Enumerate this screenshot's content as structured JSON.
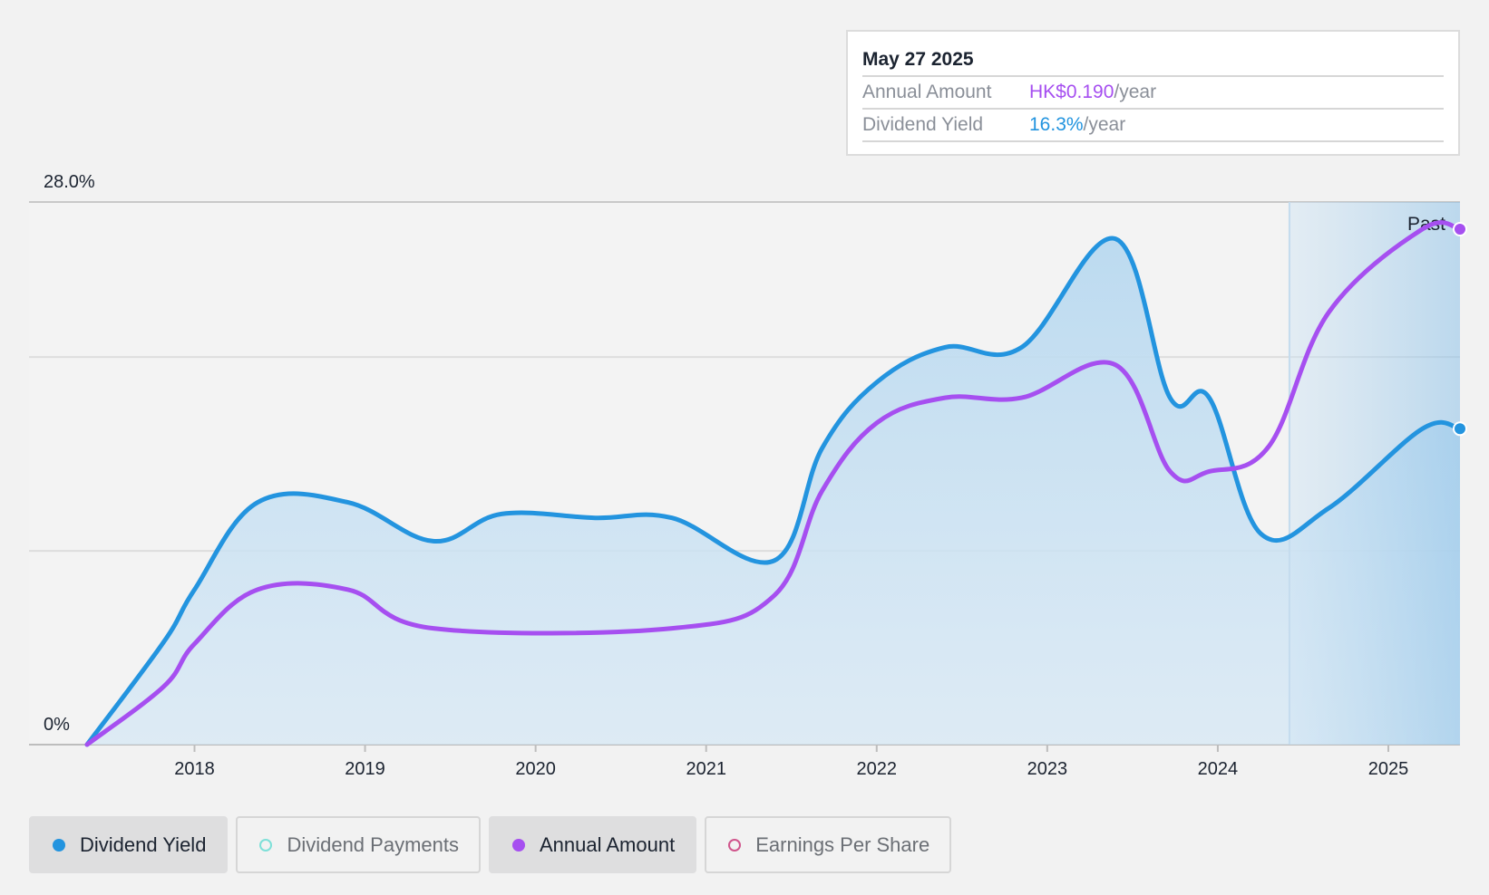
{
  "tooltip": {
    "date": "May 27 2025",
    "rows": [
      {
        "label": "Annual Amount",
        "value": "HK$0.190",
        "unit": "/year"
      },
      {
        "label": "Dividend Yield",
        "value": "16.3%",
        "unit": "/year"
      }
    ]
  },
  "past_label": "Past",
  "legend": [
    {
      "label": "Dividend Yield",
      "color": "#2394df",
      "active": true,
      "filled": true
    },
    {
      "label": "Dividend Payments",
      "color": "#7ee0d8",
      "active": false,
      "filled": false
    },
    {
      "label": "Annual Amount",
      "color": "#a64ff0",
      "active": true,
      "filled": true
    },
    {
      "label": "Earnings Per Share",
      "color": "#d0558c",
      "active": false,
      "filled": false
    }
  ],
  "chart_data": {
    "type": "line",
    "y_tick_labels": [
      "28.0%",
      "0%"
    ],
    "ylim": [
      0,
      28
    ],
    "xlim": [
      2017.37,
      2025.42
    ],
    "x_ticks": [
      "2018",
      "2019",
      "2020",
      "2021",
      "2022",
      "2023",
      "2024",
      "2025"
    ],
    "past_region_start": 2024.42,
    "grid": "horizontal",
    "series": [
      {
        "name": "Dividend Yield",
        "color": "#2394df",
        "area": true,
        "points": [
          [
            2017.37,
            0
          ],
          [
            2017.82,
            5.3
          ],
          [
            2018.0,
            8.0
          ],
          [
            2018.37,
            12.5
          ],
          [
            2018.9,
            12.5
          ],
          [
            2019.4,
            10.5
          ],
          [
            2019.8,
            11.9
          ],
          [
            2020.35,
            11.7
          ],
          [
            2020.8,
            11.7
          ],
          [
            2021.4,
            9.5
          ],
          [
            2021.68,
            15.3
          ],
          [
            2022.0,
            18.7
          ],
          [
            2022.4,
            20.5
          ],
          [
            2022.85,
            20.5
          ],
          [
            2023.4,
            26.1
          ],
          [
            2023.72,
            17.9
          ],
          [
            2023.95,
            17.9
          ],
          [
            2024.25,
            10.9
          ],
          [
            2024.65,
            12.2
          ],
          [
            2025.2,
            16.3
          ],
          [
            2025.42,
            16.3
          ]
        ]
      },
      {
        "name": "Annual Amount",
        "color": "#a64ff0",
        "area": false,
        "points": [
          [
            2017.37,
            0
          ],
          [
            2017.82,
            3.0
          ],
          [
            2018.0,
            5.2
          ],
          [
            2018.37,
            8.0
          ],
          [
            2018.9,
            8.0
          ],
          [
            2019.4,
            6.0
          ],
          [
            2020.8,
            6.0
          ],
          [
            2021.4,
            7.7
          ],
          [
            2021.68,
            13.1
          ],
          [
            2022.0,
            16.6
          ],
          [
            2022.4,
            17.9
          ],
          [
            2022.85,
            17.9
          ],
          [
            2023.4,
            19.6
          ],
          [
            2023.72,
            14.1
          ],
          [
            2023.95,
            14.1
          ],
          [
            2024.3,
            15.4
          ],
          [
            2024.65,
            22.3
          ],
          [
            2025.2,
            26.6
          ],
          [
            2025.42,
            26.6
          ]
        ]
      }
    ]
  }
}
